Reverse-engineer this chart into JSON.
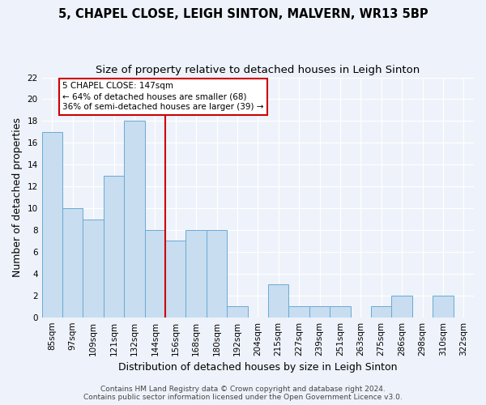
{
  "title": "5, CHAPEL CLOSE, LEIGH SINTON, MALVERN, WR13 5BP",
  "subtitle": "Size of property relative to detached houses in Leigh Sinton",
  "xlabel": "Distribution of detached houses by size in Leigh Sinton",
  "ylabel": "Number of detached properties",
  "categories": [
    "85sqm",
    "97sqm",
    "109sqm",
    "121sqm",
    "132sqm",
    "144sqm",
    "156sqm",
    "168sqm",
    "180sqm",
    "192sqm",
    "204sqm",
    "215sqm",
    "227sqm",
    "239sqm",
    "251sqm",
    "263sqm",
    "275sqm",
    "286sqm",
    "298sqm",
    "310sqm",
    "322sqm"
  ],
  "counts": [
    17,
    10,
    9,
    13,
    18,
    8,
    7,
    8,
    8,
    1,
    0,
    3,
    1,
    1,
    1,
    0,
    1,
    2,
    0,
    2,
    0
  ],
  "bar_color": "#c8ddf0",
  "bar_edge_color": "#6aaad4",
  "highlight_bar_index": 5,
  "highlight_line_color": "#cc0000",
  "annotation_title": "5 CHAPEL CLOSE: 147sqm",
  "annotation_line1": "← 64% of detached houses are smaller (68)",
  "annotation_line2": "36% of semi-detached houses are larger (39) →",
  "annotation_box_color": "#ffffff",
  "annotation_box_edge_color": "#cc0000",
  "ylim": [
    0,
    22
  ],
  "yticks": [
    0,
    2,
    4,
    6,
    8,
    10,
    12,
    14,
    16,
    18,
    20,
    22
  ],
  "footer1": "Contains HM Land Registry data © Crown copyright and database right 2024.",
  "footer2": "Contains public sector information licensed under the Open Government Licence v3.0.",
  "background_color": "#eef2fa",
  "grid_color": "#ffffff",
  "title_fontsize": 10.5,
  "subtitle_fontsize": 9.5,
  "axis_label_fontsize": 9,
  "tick_fontsize": 7.5,
  "footer_fontsize": 6.5
}
